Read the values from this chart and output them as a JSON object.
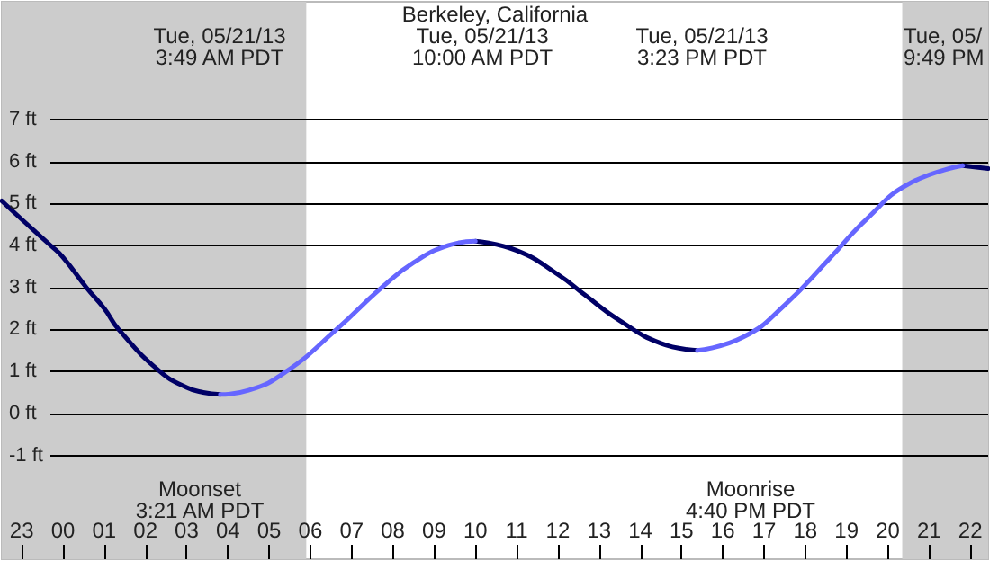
{
  "chart_data": {
    "type": "line",
    "title": "Berkeley, California",
    "x": [
      "--05-20T22:31",
      "--05-20T23:00",
      "--05-20T23:42",
      "--05-21T00:00",
      "--05-21T00:34",
      "--05-21T01:00",
      "--05-21T01:21",
      "--05-21T02:21",
      "--05-21T03:00",
      "--05-21T03:24",
      "--05-21T03:49",
      "--05-21T04:30",
      "--05-21T05:25",
      "--05-21T06:38",
      "--05-21T07:44",
      "--05-21T08:30",
      "--05-21T09:21",
      "--05-21T10:00",
      "--05-21T11:00",
      "--05-21T12:00",
      "--05-21T12:41",
      "--05-21T13:30",
      "--05-21T14:30",
      "--05-21T15:23",
      "--05-21T16:30",
      "--05-21T17:30",
      "--05-21T18:36",
      "--05-21T19:30",
      "--05-21T20:30",
      "--05-21T21:49",
      "--05-21T22:26"
    ],
    "series": [
      {
        "color": "#000066",
        "values": [
          5.06,
          4.62,
          4.0,
          3.72,
          3.0,
          2.5,
          2.0,
          1.0,
          0.62,
          0.5,
          0.45,
          null,
          null,
          null,
          null,
          null,
          null,
          4.1,
          3.88,
          3.31,
          2.8,
          2.21,
          1.67,
          1.5,
          null,
          null,
          null,
          null,
          null,
          5.9,
          5.83
        ]
      },
      {
        "color": "#6666ff",
        "values": [
          null,
          null,
          null,
          null,
          null,
          null,
          null,
          null,
          null,
          null,
          0.45,
          0.55,
          1.0,
          2.0,
          3.0,
          3.59,
          4.0,
          4.1,
          null,
          null,
          null,
          null,
          null,
          1.5,
          1.82,
          2.58,
          3.7,
          4.64,
          5.46,
          5.9,
          null
        ]
      }
    ],
    "xlim": [
      "--05-20T22:31",
      "--05-21T22:26"
    ],
    "xticks": [
      {
        "value": "--05-20T23:00",
        "label": "23"
      },
      {
        "value": "--05-21T00:00",
        "label": "00"
      },
      {
        "value": "--05-21T01:00",
        "label": "01"
      },
      {
        "value": "--05-21T02:00",
        "label": "02"
      },
      {
        "value": "--05-21T03:00",
        "label": "03"
      },
      {
        "value": "--05-21T04:00",
        "label": "04"
      },
      {
        "value": "--05-21T05:00",
        "label": "05"
      },
      {
        "value": "--05-21T06:00",
        "label": "06"
      },
      {
        "value": "--05-21T07:00",
        "label": "07"
      },
      {
        "value": "--05-21T08:00",
        "label": "08"
      },
      {
        "value": "--05-21T09:00",
        "label": "09"
      },
      {
        "value": "--05-21T10:00",
        "label": "10"
      },
      {
        "value": "--05-21T11:00",
        "label": "11"
      },
      {
        "value": "--05-21T12:00",
        "label": "12"
      },
      {
        "value": "--05-21T13:00",
        "label": "13"
      },
      {
        "value": "--05-21T14:00",
        "label": "14"
      },
      {
        "value": "--05-21T15:00",
        "label": "15"
      },
      {
        "value": "--05-21T16:00",
        "label": "16"
      },
      {
        "value": "--05-21T17:00",
        "label": "17"
      },
      {
        "value": "--05-21T18:00",
        "label": "18"
      },
      {
        "value": "--05-21T19:00",
        "label": "19"
      },
      {
        "value": "--05-21T20:00",
        "label": "20"
      },
      {
        "value": "--05-21T21:00",
        "label": "21"
      },
      {
        "value": "--05-21T22:00",
        "label": "22"
      }
    ],
    "ylim": [
      -3.47,
      9.8
    ],
    "yticks": [
      {
        "value": -1,
        "label": "-1 ft"
      },
      {
        "value": 0,
        "label": "0 ft"
      },
      {
        "value": 1,
        "label": "1 ft"
      },
      {
        "value": 2,
        "label": "2 ft"
      },
      {
        "value": 3,
        "label": "3 ft"
      },
      {
        "value": 4,
        "label": "4 ft"
      },
      {
        "value": 5,
        "label": "5 ft"
      },
      {
        "value": 6,
        "label": "6 ft"
      },
      {
        "value": 7,
        "label": "7 ft"
      }
    ],
    "grid": "y",
    "marker": "none",
    "line_style": "solid",
    "bands": [
      {
        "axis": "x",
        "from": "--05-20T22:31",
        "to": "--05-21T05:54",
        "color": "#cccccc"
      },
      {
        "axis": "x",
        "from": "--05-21T20:21",
        "to": "--05-21T22:26",
        "color": "#cccccc"
      }
    ],
    "annotations": [
      "Tue, 05/21/13\n3:49 AM PDT",
      "Tue, 05/21/13\n10:00 AM PDT",
      "Tue, 05/21/13\n3:23 PM PDT",
      "Tue, 05/\n9:49 PM",
      "Moonset\n3:21 AM PDT",
      "Moonrise\n4:40 PM PDT"
    ]
  }
}
